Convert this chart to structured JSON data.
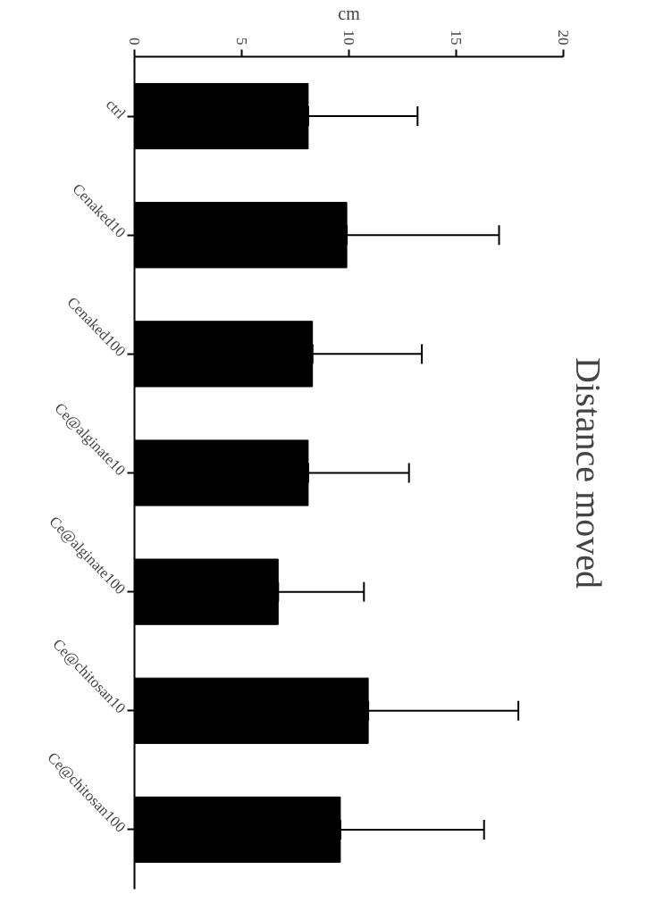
{
  "chart_data": {
    "type": "bar",
    "orientation": "horizontal",
    "title": "Distance moved",
    "xlabel": "cm",
    "categories": [
      "ctrl",
      "Cenaked10",
      "Cenaked100",
      "Ce@alginate10",
      "Ce@alginate100",
      "Ce@chitosan10",
      "Ce@chitosan100"
    ],
    "values": [
      8.1,
      9.9,
      8.3,
      8.1,
      6.7,
      10.9,
      9.6
    ],
    "errors": [
      [
        8.1,
        13.2
      ],
      [
        9.9,
        17.0
      ],
      [
        8.3,
        13.4
      ],
      [
        8.1,
        12.8
      ],
      [
        6.7,
        10.7
      ],
      [
        10.9,
        17.9
      ],
      [
        9.6,
        16.3
      ]
    ],
    "color": "#000000",
    "xlim": [
      0,
      20
    ],
    "xticks": [
      0,
      5,
      10,
      15,
      20
    ],
    "grid": false
  }
}
